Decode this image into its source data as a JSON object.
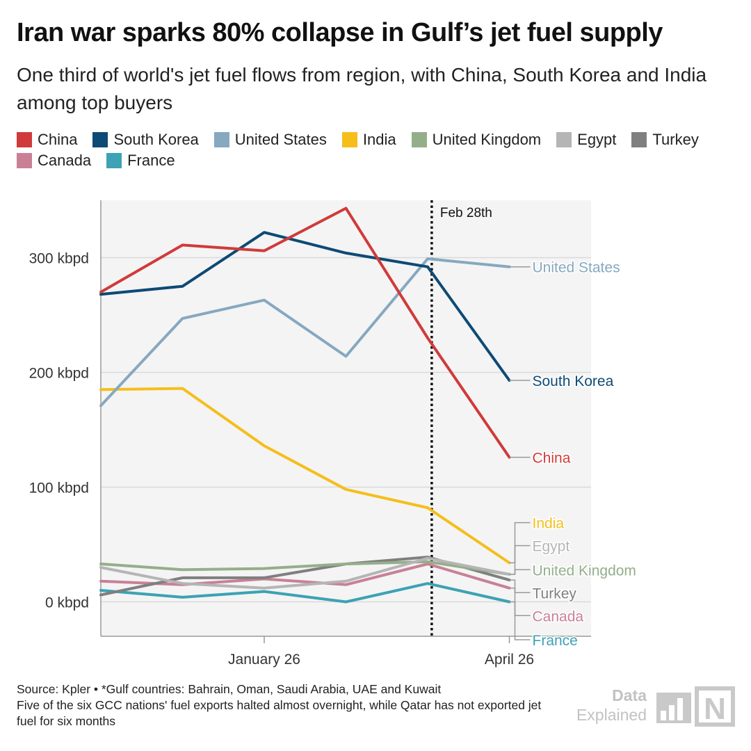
{
  "title": "Iran war sparks 80% collapse in Gulf’s jet fuel supply",
  "subtitle": "One third of world's jet fuel flows from region, with China, South Korea and India among top buyers",
  "legend": [
    {
      "name": "China",
      "color": "#d13a3a"
    },
    {
      "name": "South Korea",
      "color": "#0d4a75"
    },
    {
      "name": "United States",
      "color": "#86a8c0"
    },
    {
      "name": "India",
      "color": "#f5be1a"
    },
    {
      "name": "United Kingdom",
      "color": "#94ae8a"
    },
    {
      "name": "Egypt",
      "color": "#b5b5b5"
    },
    {
      "name": "Turkey",
      "color": "#7f7f7f"
    },
    {
      "name": "Canada",
      "color": "#c98096"
    },
    {
      "name": "France",
      "color": "#3ca2b4"
    }
  ],
  "chart_data": {
    "type": "line",
    "ylim": [
      -30,
      350
    ],
    "y_ticks": [
      {
        "value": 0,
        "label": "0 kbpd"
      },
      {
        "value": 100,
        "label": "100 kbpd"
      },
      {
        "value": 200,
        "label": "200 kbpd"
      },
      {
        "value": 300,
        "label": "300 kbpd"
      }
    ],
    "x_ticks": [
      {
        "index": 2,
        "label": "January 26"
      },
      {
        "index": 5,
        "label": "April 26"
      }
    ],
    "annotation": {
      "label": "Feb 28th",
      "index": 4.05
    },
    "grid": true,
    "series": [
      {
        "name": "China",
        "color": "#d13a3a",
        "values": [
          270,
          311,
          306,
          343,
          230,
          126
        ],
        "end_label_value": 126
      },
      {
        "name": "South Korea",
        "color": "#0d4a75",
        "values": [
          268,
          275,
          322,
          304,
          292,
          193
        ],
        "end_label_value": 193
      },
      {
        "name": "United States",
        "color": "#86a8c0",
        "values": [
          171,
          247,
          263,
          214,
          299,
          292
        ],
        "end_label_value": 292
      },
      {
        "name": "India",
        "color": "#f5be1a",
        "values": [
          185,
          186,
          136,
          98,
          82,
          34
        ],
        "end_label_value": 69
      },
      {
        "name": "Egypt",
        "color": "#b5b5b5",
        "values": [
          30,
          16,
          12,
          18,
          38,
          24
        ],
        "end_label_value": 49
      },
      {
        "name": "United Kingdom",
        "color": "#94ae8a",
        "values": [
          33,
          28,
          29,
          33,
          35,
          24
        ],
        "end_label_value": 28
      },
      {
        "name": "Turkey",
        "color": "#7f7f7f",
        "values": [
          6,
          21,
          21,
          33,
          39,
          19
        ],
        "end_label_value": 8
      },
      {
        "name": "Canada",
        "color": "#c98096",
        "values": [
          18,
          15,
          20,
          15,
          33,
          12
        ],
        "end_label_value": -12
      },
      {
        "name": "France",
        "color": "#3ca2b4",
        "values": [
          10,
          4,
          9,
          0,
          16,
          0
        ],
        "end_label_value": -33
      }
    ]
  },
  "footer": {
    "line1": "Source: Kpler • *Gulf countries: Bahrain, Oman, Saudi Arabia, UAE and Kuwait",
    "line2": "Five of the six GCC nations' fuel exports halted almost overnight, while Qatar has not exported jet fuel for six months"
  },
  "brand": {
    "line1": "Data",
    "line2": "Explained",
    "logo_letter": "N"
  }
}
